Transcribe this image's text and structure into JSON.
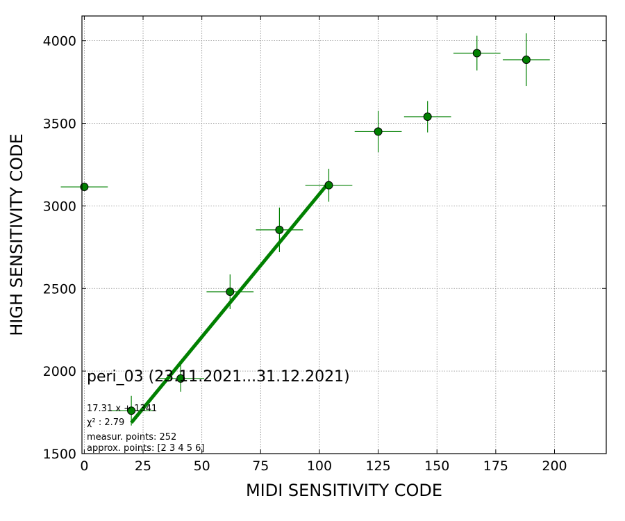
{
  "chart_data": {
    "type": "scatter",
    "xlabel": "MIDI SENSITIVITY CODE",
    "ylabel": "HIGH SENSITIVITY CODE",
    "xlim": [
      -1,
      222
    ],
    "ylim": [
      1500,
      4150
    ],
    "x_ticks": [
      0,
      25,
      50,
      75,
      100,
      125,
      150,
      175,
      200
    ],
    "y_ticks": [
      1500,
      2000,
      2500,
      3000,
      3500,
      4000
    ],
    "grid": true,
    "colors": {
      "marker": "#008000",
      "fit_line": "#008000",
      "grid": "#888888"
    },
    "points": [
      {
        "x": 0,
        "y": 3115,
        "xerr": 10,
        "yerr": 0
      },
      {
        "x": 20,
        "y": 1760,
        "xerr": 10,
        "yerr": 90
      },
      {
        "x": 41,
        "y": 1955,
        "xerr": 10,
        "yerr": 80
      },
      {
        "x": 62,
        "y": 2480,
        "xerr": 10,
        "yerr": 105
      },
      {
        "x": 83,
        "y": 2855,
        "xerr": 10,
        "yerr": 135
      },
      {
        "x": 104,
        "y": 3125,
        "xerr": 10,
        "yerr": 100
      },
      {
        "x": 125,
        "y": 3450,
        "xerr": 10,
        "yerr": 125
      },
      {
        "x": 146,
        "y": 3540,
        "xerr": 10,
        "yerr": 95
      },
      {
        "x": 167,
        "y": 3925,
        "xerr": 10,
        "yerr": 105
      },
      {
        "x": 188,
        "y": 3885,
        "xerr": 10,
        "yerr": 160
      }
    ],
    "fit": {
      "slope": 17.31,
      "intercept": 1341,
      "x_range": [
        20,
        104
      ]
    },
    "annotations": {
      "title": "peri_03 (23.11.2021...31.12.2021)",
      "equation": "17.31 x + 1341",
      "chi2": "χ² : 2.79",
      "measur_points": "measur. points: 252",
      "approx_points": "approx. points: [2 3 4 5 6]"
    }
  }
}
